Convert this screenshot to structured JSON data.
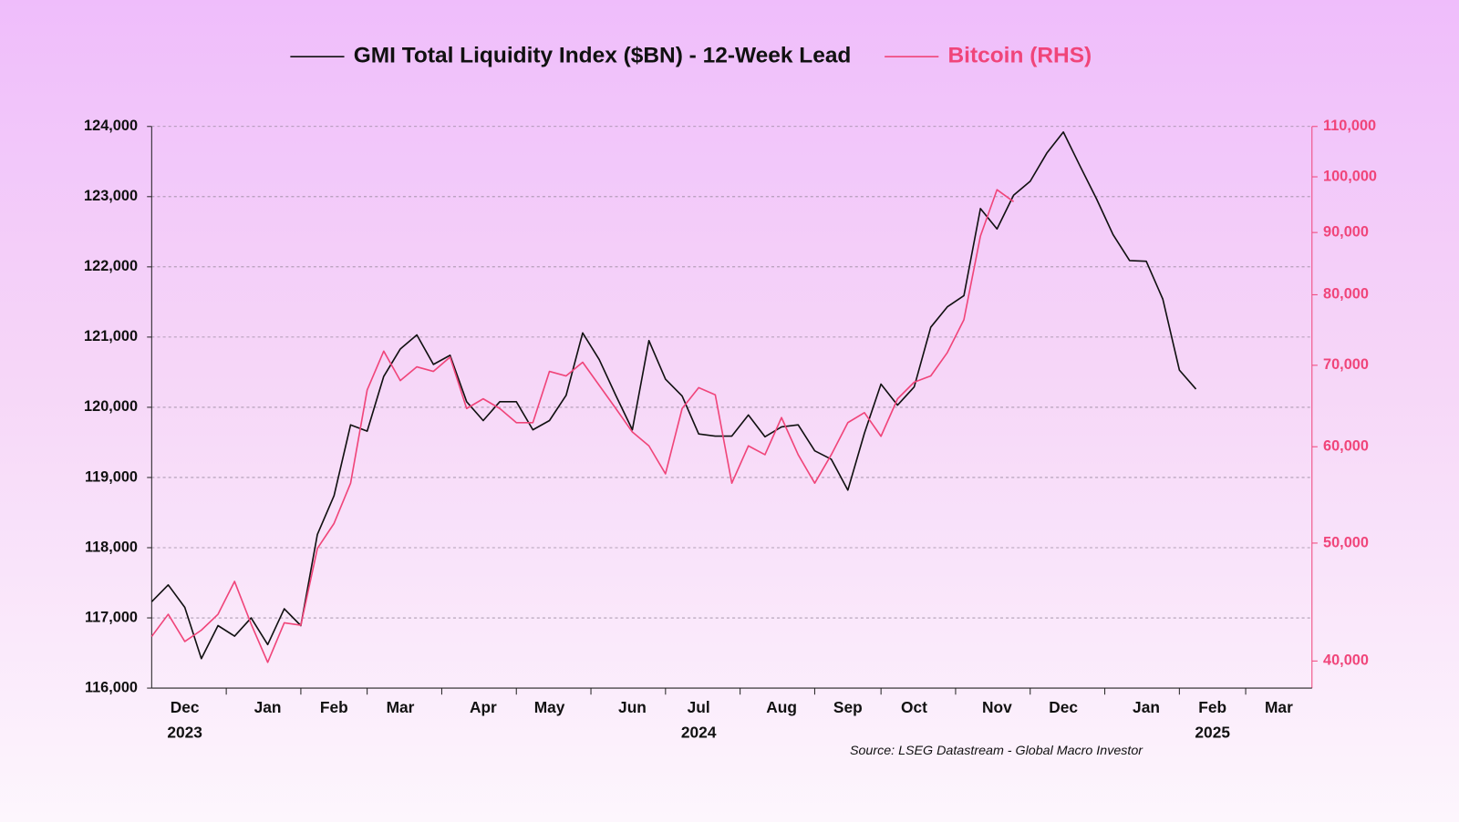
{
  "chart_data": {
    "type": "line",
    "legend": "top",
    "grid": true,
    "y2scale": "log",
    "source": "Source: LSEG Datastream - Global Macro Investor",
    "categories": [
      null,
      null,
      "Dec",
      null,
      null,
      null,
      null,
      "Jan",
      null,
      null,
      null,
      "Feb",
      null,
      null,
      null,
      "Mar",
      null,
      null,
      null,
      null,
      "Apr",
      null,
      null,
      null,
      "May",
      null,
      null,
      null,
      null,
      "Jun",
      null,
      null,
      null,
      "Jul",
      null,
      null,
      null,
      null,
      "Aug",
      null,
      null,
      null,
      "Sep",
      null,
      null,
      null,
      "Oct",
      null,
      null,
      null,
      null,
      "Nov",
      null,
      null,
      null,
      "Dec",
      null,
      null,
      null,
      null,
      "Jan",
      null,
      null,
      null,
      "Feb",
      null,
      null,
      null,
      "Mar",
      null,
      null
    ],
    "x_year_labels": [
      null,
      null,
      "2023",
      null,
      null,
      null,
      null,
      null,
      null,
      null,
      null,
      null,
      null,
      null,
      null,
      null,
      null,
      null,
      null,
      null,
      null,
      null,
      null,
      null,
      null,
      null,
      null,
      null,
      null,
      null,
      null,
      null,
      null,
      "2024",
      null,
      null,
      null,
      null,
      null,
      null,
      null,
      null,
      null,
      null,
      null,
      null,
      null,
      null,
      null,
      null,
      null,
      null,
      null,
      null,
      null,
      null,
      null,
      null,
      null,
      null,
      null,
      null,
      null,
      null,
      "2025",
      null,
      null,
      null,
      null,
      null,
      null
    ],
    "ylim": [
      116000,
      124000
    ],
    "yticks": [
      {
        "value": 116000,
        "label": "116,000"
      },
      {
        "value": 117000,
        "label": "117,000"
      },
      {
        "value": 118000,
        "label": "118,000"
      },
      {
        "value": 119000,
        "label": "119,000"
      },
      {
        "value": 120000,
        "label": "120,000"
      },
      {
        "value": 121000,
        "label": "121,000"
      },
      {
        "value": 122000,
        "label": "122,000"
      },
      {
        "value": 123000,
        "label": "123,000"
      },
      {
        "value": 124000,
        "label": "124,000"
      }
    ],
    "y2lim": [
      38000,
      110000
    ],
    "y2ticks": [
      {
        "value": 40000,
        "label": "40,000"
      },
      {
        "value": 50000,
        "label": "50,000"
      },
      {
        "value": 60000,
        "label": "60,000"
      },
      {
        "value": 70000,
        "label": "70,000"
      },
      {
        "value": 80000,
        "label": "80,000"
      },
      {
        "value": 90000,
        "label": "90,000"
      },
      {
        "value": 100000,
        "label": "100,000"
      },
      {
        "value": 110000,
        "label": "110,000"
      }
    ],
    "series": [
      {
        "name": "GMI Total Liquidity Index ($BN) - 12-Week Lead",
        "color": "#111111",
        "values": [
          117230,
          117470,
          117150,
          116420,
          116890,
          116740,
          117000,
          116620,
          117130,
          116890,
          118190,
          118740,
          119750,
          119660,
          120440,
          120830,
          121030,
          120610,
          120740,
          120080,
          119810,
          120080,
          120080,
          119680,
          119810,
          120170,
          121060,
          120680,
          120170,
          119680,
          120950,
          120400,
          120160,
          119620,
          119590,
          119590,
          119890,
          119580,
          119720,
          119750,
          119380,
          119260,
          118820,
          119630,
          120330,
          120030,
          120290,
          121140,
          121430,
          121590,
          122830,
          122540,
          123020,
          123220,
          123620,
          123920,
          123440,
          122970,
          122460,
          122090,
          122080,
          121540,
          120530,
          120260,
          null,
          null,
          null,
          null,
          null,
          null,
          null
        ]
      },
      {
        "name": "Bitcoin (RHS)",
        "color": "#f0457a",
        "axis": "y2",
        "values": [
          41900,
          43700,
          41500,
          42400,
          43700,
          46500,
          42900,
          39900,
          43000,
          42800,
          49500,
          51900,
          56000,
          66800,
          71900,
          68000,
          69800,
          69200,
          71100,
          64500,
          65700,
          64500,
          62800,
          62800,
          69200,
          68600,
          70400,
          67400,
          64500,
          61700,
          60100,
          57000,
          64500,
          67100,
          66200,
          56000,
          60100,
          59100,
          63400,
          59100,
          56000,
          59100,
          62800,
          64000,
          61200,
          65700,
          67800,
          68600,
          71700,
          76300,
          89400,
          97600,
          95400,
          null,
          null,
          null,
          null,
          null,
          null,
          null,
          null,
          null,
          null,
          null,
          null,
          null,
          null,
          null,
          null,
          null,
          null
        ]
      }
    ]
  }
}
